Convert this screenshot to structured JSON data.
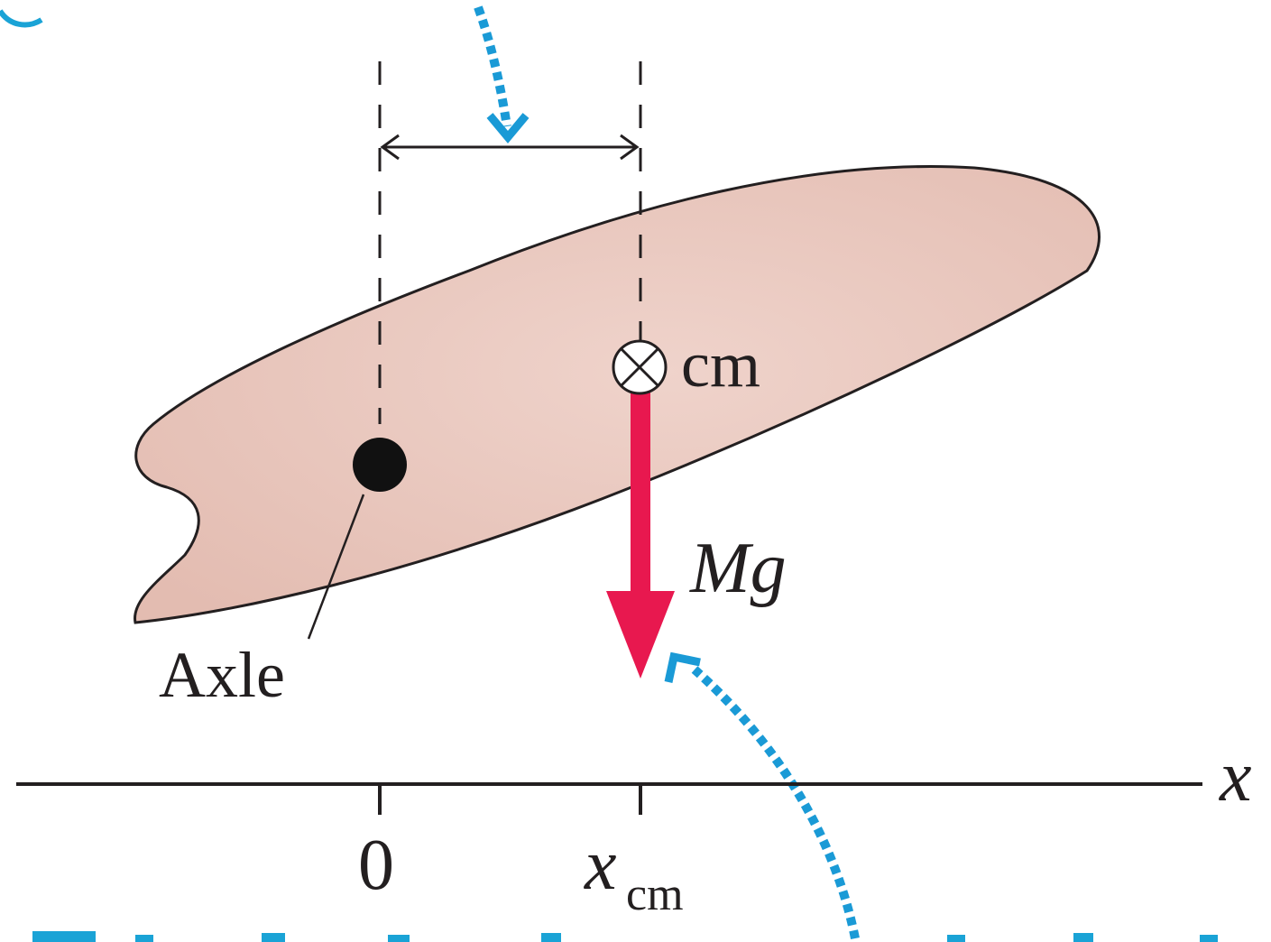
{
  "labels": {
    "cm": "cm",
    "force_symbol": "Mg",
    "axle": "Axle",
    "axis_name": "x",
    "origin_tick": "0",
    "cm_tick_main": "x",
    "cm_tick_sub": "cm"
  },
  "colors": {
    "body_fill": "#e9c6bd",
    "outline": "#231f20",
    "force_arrow": "#e8184f",
    "callout_arrow": "#1a9ad6"
  }
}
